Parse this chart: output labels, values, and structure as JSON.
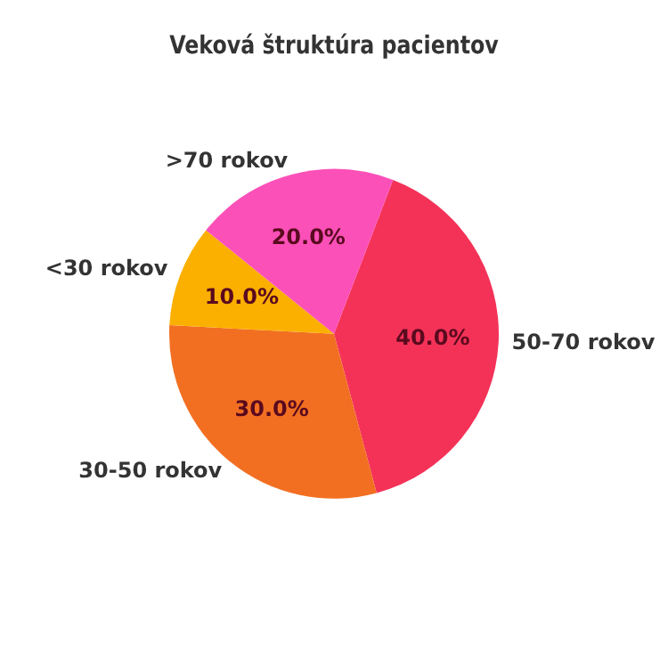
{
  "chart_data": {
    "type": "pie",
    "title": "Veková štruktúra pacientov",
    "categories": [
      "50-70 rokov",
      "30-50 rokov",
      "<30 rokov",
      ">70 rokov"
    ],
    "values": [
      40,
      30,
      10,
      20
    ],
    "colors": [
      "#f43258",
      "#f26f22",
      "#fbb000",
      "#fb50b8"
    ],
    "value_labels": [
      "40.0%",
      "30.0%",
      "10.0%",
      "20.0%"
    ],
    "legend": false
  }
}
